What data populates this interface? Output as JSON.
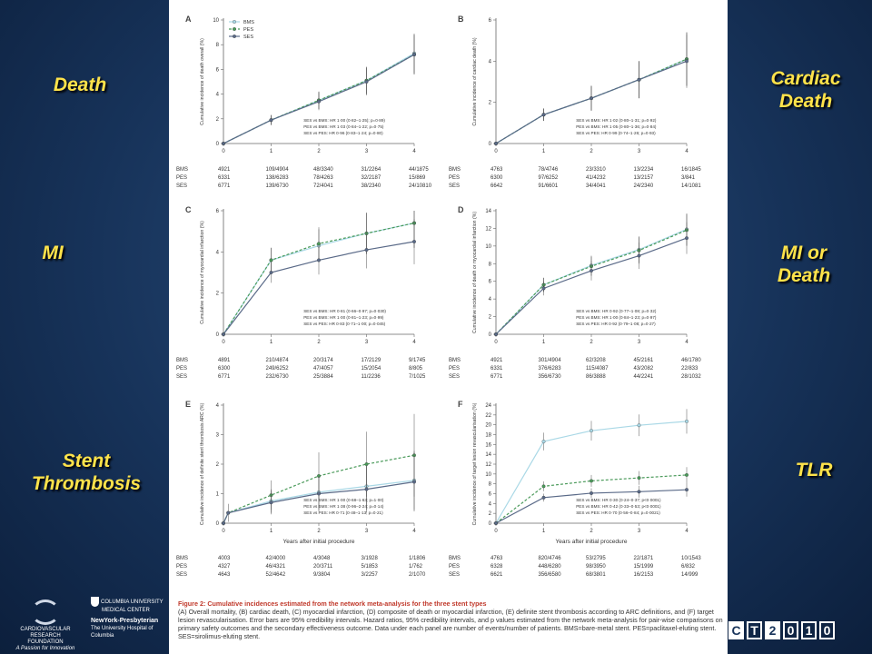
{
  "side_labels": {
    "death": "Death",
    "cardiac_death": "Cardiac Death",
    "mi": "MI",
    "mi_or_death": "MI or Death",
    "stent_thrombosis": "Stent Thrombosis",
    "tlr": "TLR"
  },
  "colors": {
    "BMS": "#a9d8e6",
    "PES": "#4a9a5a",
    "SES": "#5a6a88",
    "caption_title": "#c0392b",
    "side_label": "#ffe34a"
  },
  "legend": [
    "BMS",
    "PES",
    "SES"
  ],
  "xlabel": "Years after initial procedure",
  "caption": {
    "title": "Figure 2: Cumulative incidences estimated from the network meta-analysis for the three stent types",
    "body": "(A) Overall mortality, (B) cardiac death, (C) myocardial infarction, (D) composite of death or myocardial infarction, (E) definite stent thrombosis according to ARC definitions, and (F) target lesion revascularisation. Error bars are 95% credibility intervals. Hazard ratios, 95% credibility intervals, and p values estimated from the network meta-analysis for pair-wise comparisons on primary safety outcomes and the secondary effectiveness outcome. Data under each panel are number of events/number of patients. BMS=bare-metal stent. PES=paclitaxel-eluting stent. SES=sirolimus-eluting stent."
  },
  "logos": {
    "crf_lines": [
      "CARDIOVASCULAR RESEARCH",
      "FOUNDATION",
      "A Passion for Innovation"
    ],
    "cu_lines": [
      "COLUMBIA UNIVERSITY",
      "MEDICAL CENTER",
      "NewYork-Presbyterian",
      "The University Hospital of Columbia"
    ],
    "ct_letters": [
      "C",
      "T",
      "2",
      "0",
      "1",
      "0"
    ]
  },
  "chart_data": [
    {
      "panel": "A",
      "type": "line",
      "ylabel": "Cumulative incidence of death overall (%)",
      "x": [
        0,
        1,
        2,
        3,
        4
      ],
      "ylim": [
        0,
        10
      ],
      "yticks": [
        0,
        2,
        4,
        6,
        8,
        10
      ],
      "series": [
        {
          "name": "BMS",
          "values": [
            0,
            1.9,
            3.5,
            5.1,
            7.3
          ],
          "err": [
            0,
            0.4,
            0.7,
            1.1,
            1.6
          ]
        },
        {
          "name": "PES",
          "values": [
            0,
            1.9,
            3.5,
            5.1,
            7.2
          ],
          "err": [
            0,
            0.4,
            0.7,
            1.1,
            1.6
          ]
        },
        {
          "name": "SES",
          "values": [
            0,
            1.9,
            3.4,
            5.0,
            7.2
          ],
          "err": [
            0,
            0.4,
            0.7,
            1.1,
            1.6
          ]
        }
      ],
      "stats": [
        "SES vs BMS: HR 1·00 (0·82–1·25); p=0·89)",
        "PES vs BMS: HR 1·03 (0·84–1·22; p=0·75)",
        "SES vs PES: HR 0·96 (0·83–1·24; p=0·80)"
      ],
      "risk_table": {
        "BMS": [
          "4921",
          "109/4904",
          "48/3340",
          "31/2264",
          "44/1875"
        ],
        "PES": [
          "6331",
          "138/6283",
          "78/4263",
          "32/2187",
          "15/869"
        ],
        "SES": [
          "6771",
          "139/6730",
          "72/4041",
          "38/2340",
          "24/10810"
        ]
      }
    },
    {
      "panel": "B",
      "type": "line",
      "ylabel": "Cumulative incidence of cardiac death (%)",
      "x": [
        0,
        1,
        2,
        3,
        4
      ],
      "ylim": [
        0,
        6
      ],
      "yticks": [
        0,
        2,
        4,
        6
      ],
      "series": [
        {
          "name": "BMS",
          "values": [
            0,
            1.4,
            2.2,
            3.1,
            4.1
          ],
          "err": [
            0,
            0.3,
            0.6,
            0.9,
            1.3
          ]
        },
        {
          "name": "PES",
          "values": [
            0,
            1.4,
            2.2,
            3.1,
            4.1
          ],
          "err": [
            0,
            0.3,
            0.6,
            0.9,
            1.3
          ]
        },
        {
          "name": "SES",
          "values": [
            0,
            1.4,
            2.2,
            3.1,
            4.0
          ],
          "err": [
            0,
            0.3,
            0.6,
            0.9,
            1.3
          ]
        }
      ],
      "stats": [
        "SES vs BMS: HR 1·02 (0·80–1·31; p=0·92)",
        "PES vs BMS: HR 1·05 (0·80–1·36; p=0·84)",
        "SES vs PES: HR 0·99 (0·74–1·26; p=0·93)"
      ],
      "risk_table": {
        "BMS": [
          "4763",
          "78/4746",
          "23/3310",
          "13/2234",
          "16/1845"
        ],
        "PES": [
          "6300",
          "97/6252",
          "41/4232",
          "13/2157",
          "3/841"
        ],
        "SES": [
          "6642",
          "91/6601",
          "34/4041",
          "24/2340",
          "14/1081"
        ]
      }
    },
    {
      "panel": "C",
      "type": "line",
      "ylabel": "Cumulative incidence of myocardial infarction (%)",
      "x": [
        0,
        1,
        2,
        3,
        4
      ],
      "ylim": [
        0,
        6
      ],
      "yticks": [
        0,
        2,
        4,
        6
      ],
      "series": [
        {
          "name": "BMS",
          "values": [
            0,
            3.6,
            4.3,
            4.9,
            5.4
          ],
          "err": [
            0,
            0.6,
            0.8,
            1.0,
            1.2
          ]
        },
        {
          "name": "PES",
          "values": [
            0,
            3.6,
            4.4,
            4.9,
            5.4
          ],
          "err": [
            0,
            0.6,
            0.8,
            1.0,
            1.2
          ]
        },
        {
          "name": "SES",
          "values": [
            0,
            3.0,
            3.6,
            4.1,
            4.5
          ],
          "err": [
            0,
            0.5,
            0.7,
            0.9,
            1.1
          ]
        }
      ],
      "stats": [
        "SES vs BMS: HR 0·81 (0·66–0·97; p=0·030)",
        "PES vs BMS: HR 1·00 (0·81–1·23; p=0·99)",
        "SES vs PES: HR 0·83 (0·71–1·00; p=0·045)"
      ],
      "risk_table": {
        "BMS": [
          "4891",
          "210/4874",
          "20/3174",
          "17/2129",
          "9/1745"
        ],
        "PES": [
          "6300",
          "249/6252",
          "47/4057",
          "15/2054",
          "8/805"
        ],
        "SES": [
          "6771",
          "232/6730",
          "25/3884",
          "11/2236",
          "7/1025"
        ]
      }
    },
    {
      "panel": "D",
      "type": "line",
      "ylabel": "Cumulative incidence of death or myocardial infarction (%)",
      "x": [
        0,
        1,
        2,
        3,
        4
      ],
      "ylim": [
        0,
        14
      ],
      "yticks": [
        0,
        2,
        4,
        6,
        8,
        10,
        12,
        14
      ],
      "series": [
        {
          "name": "BMS",
          "values": [
            0,
            5.6,
            7.8,
            9.6,
            11.9
          ],
          "err": [
            0,
            0.8,
            1.1,
            1.5,
            1.8
          ]
        },
        {
          "name": "PES",
          "values": [
            0,
            5.6,
            7.7,
            9.5,
            11.8
          ],
          "err": [
            0,
            0.8,
            1.1,
            1.5,
            1.8
          ]
        },
        {
          "name": "SES",
          "values": [
            0,
            5.2,
            7.2,
            8.9,
            10.9
          ],
          "err": [
            0,
            0.8,
            1.1,
            1.5,
            1.8
          ]
        }
      ],
      "stats": [
        "SES vs BMS: HR 0·92 (0·77–1·08; p=0·32)",
        "PES vs BMS: HR 1·00 (0·84–1·23; p=0·97)",
        "SES vs PES: HR 0·92 (0·79–1·08; p=0·27)"
      ],
      "risk_table": {
        "BMS": [
          "4921",
          "301/4904",
          "62/3208",
          "45/2161",
          "46/1780"
        ],
        "PES": [
          "6331",
          "376/6283",
          "115/4087",
          "43/2082",
          "22/833"
        ],
        "SES": [
          "6771",
          "356/6730",
          "86/3888",
          "44/2241",
          "28/1032"
        ]
      }
    },
    {
      "panel": "E",
      "type": "line",
      "ylabel": "Cumulative incidence of definite stent thrombosis ARC (%)",
      "x": [
        0,
        0.1,
        1,
        2,
        3,
        4
      ],
      "ylim": [
        0,
        4
      ],
      "yticks": [
        0,
        1,
        2,
        3,
        4
      ],
      "series": [
        {
          "name": "BMS",
          "values": [
            0,
            0.35,
            0.75,
            1.05,
            1.25,
            1.45
          ],
          "err": [
            0,
            0.3,
            0.4,
            0.6,
            0.8,
            1.0
          ]
        },
        {
          "name": "PES",
          "values": [
            0,
            0.35,
            0.95,
            1.6,
            2.0,
            2.3
          ],
          "err": [
            0,
            0.3,
            0.5,
            0.8,
            1.1,
            1.4
          ]
        },
        {
          "name": "SES",
          "values": [
            0,
            0.35,
            0.7,
            1.0,
            1.15,
            1.4
          ],
          "err": [
            0,
            0.3,
            0.4,
            0.6,
            0.8,
            1.0
          ]
        }
      ],
      "stats": [
        "SES vs BMS: HR 1·00 (0·68–1·63; p=1·00)",
        "PES vs BMS: HR 1·38 (0·96–2·24; p=0·14)",
        "SES vs PES: HR 0·71 (0·48–1·13; p=0·21)"
      ],
      "risk_table": {
        "BMS": [
          "4003",
          "42/4000",
          "4/3048",
          "3/1928",
          "1/1806"
        ],
        "PES": [
          "4327",
          "46/4321",
          "20/3711",
          "5/1853",
          "1/762"
        ],
        "SES": [
          "4643",
          "52/4642",
          "9/3804",
          "3/2257",
          "2/1070"
        ]
      }
    },
    {
      "panel": "F",
      "type": "line",
      "ylabel": "Cumulative incidence of target lesion revascularisation (%)",
      "x": [
        0,
        1,
        2,
        3,
        4
      ],
      "ylim": [
        0,
        24
      ],
      "yticks": [
        0,
        2,
        4,
        6,
        8,
        10,
        12,
        14,
        16,
        18,
        20,
        22,
        24
      ],
      "series": [
        {
          "name": "BMS",
          "values": [
            0,
            16.6,
            18.8,
            19.9,
            20.7
          ],
          "err": [
            0,
            1.8,
            2.0,
            2.2,
            2.5
          ]
        },
        {
          "name": "PES",
          "values": [
            0,
            7.5,
            8.6,
            9.2,
            9.8
          ],
          "err": [
            0,
            1.0,
            1.2,
            1.4,
            1.6
          ]
        },
        {
          "name": "SES",
          "values": [
            0,
            5.2,
            6.1,
            6.4,
            6.8
          ],
          "err": [
            0,
            0.8,
            1.0,
            1.2,
            1.4
          ]
        }
      ],
      "stats": [
        "SES vs BMS: HR 0·30 (0·24–0·37; p<0·0001)",
        "PES vs BMS: HR 0·42 (0·33–0·53; p<0·0001)",
        "SES vs PES: HR 0·70 (0·56–0·84; p=0·0021)"
      ],
      "risk_table": {
        "BMS": [
          "4763",
          "820/4746",
          "53/2795",
          "22/1871",
          "10/1543"
        ],
        "PES": [
          "6328",
          "448/6280",
          "98/3950",
          "15/1999",
          "6/832"
        ],
        "SES": [
          "6621",
          "356/6580",
          "68/3801",
          "16/2153",
          "14/999"
        ]
      }
    }
  ]
}
